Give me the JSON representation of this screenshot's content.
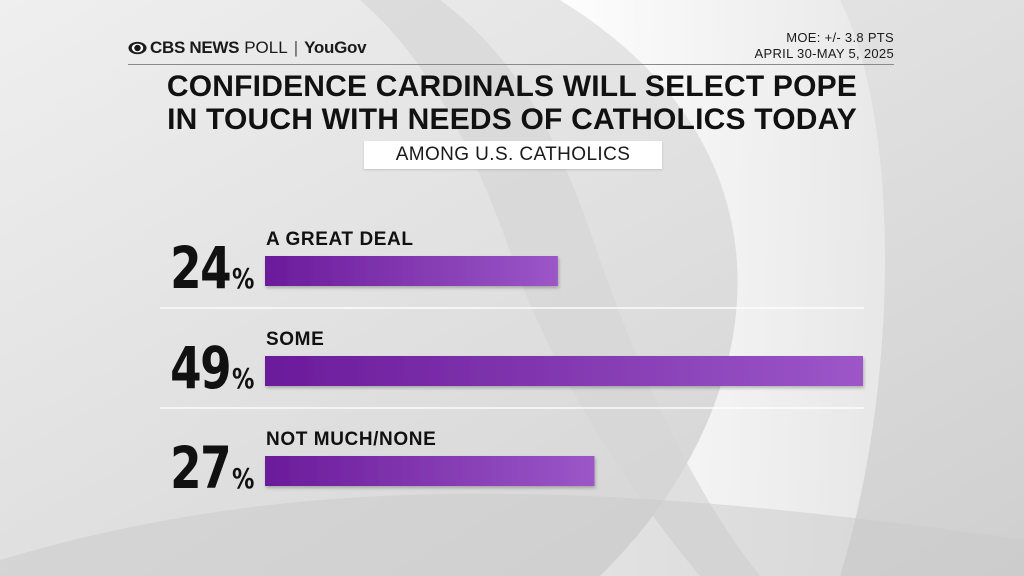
{
  "header": {
    "brand_cbs": "CBS NEWS",
    "brand_poll": "POLL",
    "brand_sep": "|",
    "brand_yougov": "YouGov",
    "moe": "MOE: +/- 3.8 PTS",
    "dates": "APRIL 30-MAY 5, 2025"
  },
  "chart_data": {
    "type": "bar",
    "title": "CONFIDENCE CARDINALS WILL SELECT POPE IN TOUCH WITH NEEDS OF CATHOLICS TODAY",
    "title_lines": [
      "CONFIDENCE CARDINALS WILL SELECT POPE",
      "IN TOUCH WITH NEEDS OF CATHOLICS TODAY"
    ],
    "subtitle": "AMONG U.S. CATHOLICS",
    "categories": [
      "A GREAT DEAL",
      "SOME",
      "NOT MUCH/NONE"
    ],
    "values": [
      24,
      49,
      27
    ],
    "value_suffix": "%",
    "orientation": "horizontal",
    "xlim": [
      0,
      49
    ],
    "grid": false
  },
  "colors": {
    "bar_start": "#6a1b9a",
    "bar_end": "#9c56c8",
    "text": "#111111"
  }
}
